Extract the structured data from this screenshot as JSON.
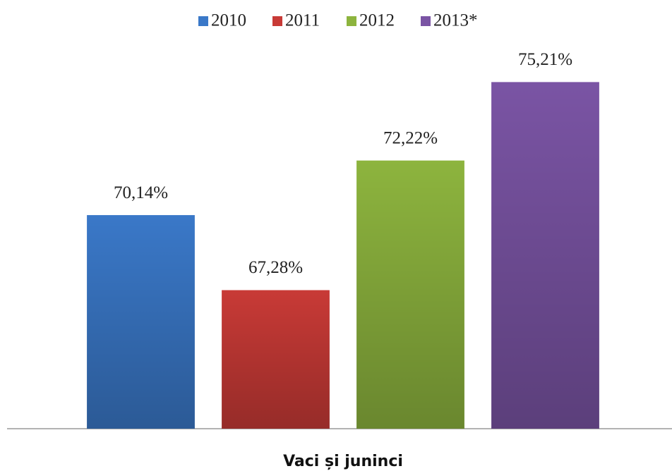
{
  "chart_data": {
    "type": "bar",
    "categories": [
      "Vaci și juninci"
    ],
    "series": [
      {
        "name": "2010",
        "color": "#3a78c8",
        "values": [
          70.14
        ],
        "value_labels": [
          "70,14%"
        ]
      },
      {
        "name": "2011",
        "color": "#c83a36",
        "values": [
          67.28
        ],
        "value_labels": [
          "67,28%"
        ]
      },
      {
        "name": "2012",
        "color": "#8db43e",
        "values": [
          72.22
        ],
        "value_labels": [
          "72,22%"
        ]
      },
      {
        "name": "2013*",
        "color": "#7a54a4",
        "values": [
          75.21
        ],
        "value_labels": [
          "75,21%"
        ]
      }
    ],
    "ylim": [
      62,
      76
    ],
    "legend": "top"
  }
}
